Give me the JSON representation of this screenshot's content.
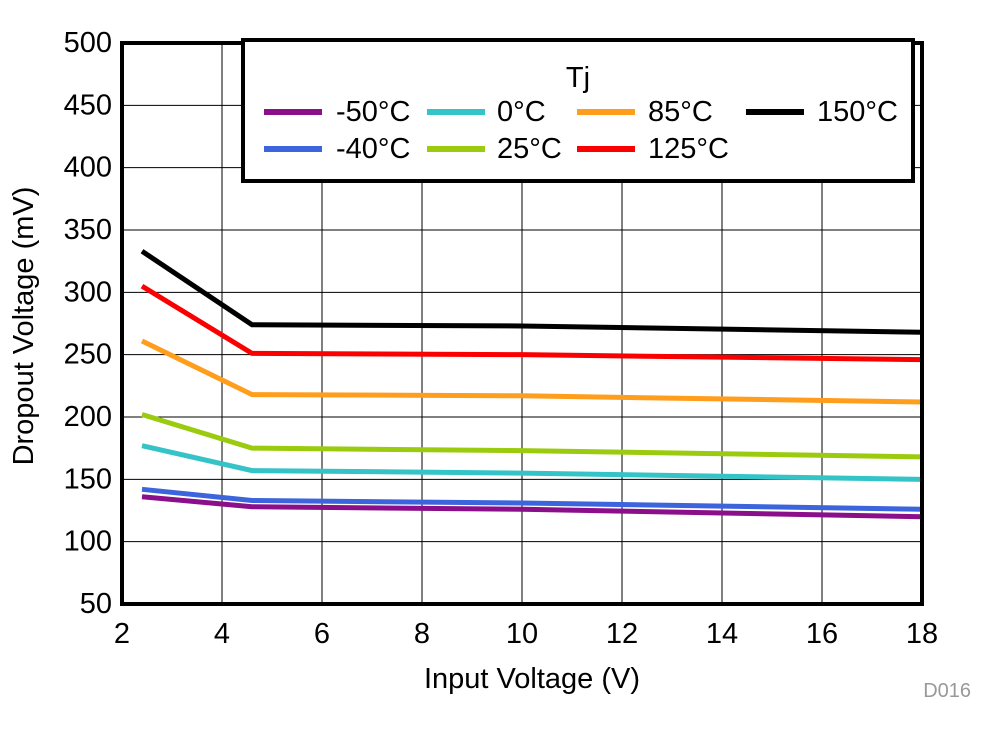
{
  "figure": {
    "watermark": "D016",
    "watermark_color": "#999999",
    "background": "#ffffff"
  },
  "chart_data": {
    "type": "line",
    "title": "",
    "xlabel": "Input Voltage (V)",
    "ylabel": "Dropout Voltage (mV)",
    "xlim": [
      2,
      18
    ],
    "ylim": [
      50,
      500
    ],
    "x_ticks": [
      2,
      4,
      6,
      8,
      10,
      12,
      14,
      16,
      18
    ],
    "y_ticks": [
      500,
      450,
      400,
      350,
      300,
      250,
      200,
      150,
      100,
      50
    ],
    "grid": true,
    "grid_color": "#000000",
    "axis_color": "#000000",
    "legend_title": "Tj",
    "legend_position": "top-inside",
    "x": [
      2.4,
      4.6,
      10,
      18
    ],
    "series": [
      {
        "name": "-50°C",
        "color": "#8b0e8b",
        "values": [
          136,
          128,
          126,
          120
        ]
      },
      {
        "name": "-40°C",
        "color": "#3c64dc",
        "values": [
          142,
          133,
          131,
          126
        ]
      },
      {
        "name": "0°C",
        "color": "#34c3c6",
        "values": [
          177,
          157,
          155,
          150
        ]
      },
      {
        "name": "25°C",
        "color": "#9bcb0e",
        "values": [
          202,
          175,
          173,
          168
        ]
      },
      {
        "name": "85°C",
        "color": "#ff9d1c",
        "values": [
          261,
          218,
          217,
          212
        ]
      },
      {
        "name": "125°C",
        "color": "#fb0000",
        "values": [
          305,
          251,
          250,
          246
        ]
      },
      {
        "name": "150°C",
        "color": "#000000",
        "values": [
          333,
          274,
          273,
          268
        ]
      }
    ],
    "legend_columns": [
      [
        "-50°C",
        "-40°C"
      ],
      [
        "0°C",
        "25°C"
      ],
      [
        "85°C",
        "125°C"
      ],
      [
        "150°C"
      ]
    ]
  }
}
